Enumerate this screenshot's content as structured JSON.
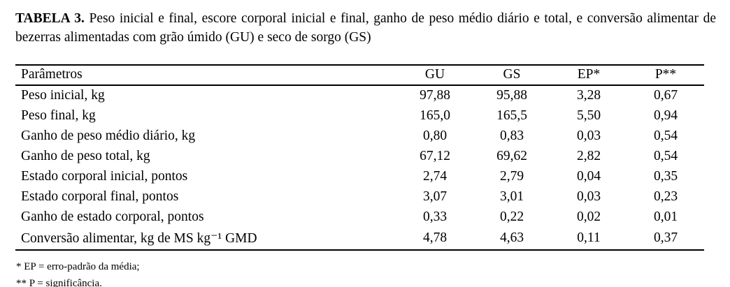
{
  "caption": {
    "label": "TABELA 3.",
    "text": "Peso inicial e final, escore corporal inicial e final, ganho de peso médio diário e total, e conversão alimentar de bezerras alimentadas com grão úmido (GU) e seco de sorgo (GS)"
  },
  "table": {
    "columns": {
      "param": "Parâmetros",
      "gu": "GU",
      "gs": "GS",
      "ep": "EP*",
      "p": "P**"
    },
    "rows": [
      {
        "param": "Peso inicial, kg",
        "gu": "97,88",
        "gs": "95,88",
        "ep": "3,28",
        "p": "0,67"
      },
      {
        "param": "Peso final, kg",
        "gu": "165,0",
        "gs": "165,5",
        "ep": "5,50",
        "p": "0,94"
      },
      {
        "param": "Ganho de peso médio diário, kg",
        "gu": "0,80",
        "gs": "0,83",
        "ep": "0,03",
        "p": "0,54"
      },
      {
        "param": "Ganho de peso total, kg",
        "gu": "67,12",
        "gs": "69,62",
        "ep": "2,82",
        "p": "0,54"
      },
      {
        "param": "Estado corporal inicial, pontos",
        "gu": "2,74",
        "gs": "2,79",
        "ep": "0,04",
        "p": "0,35"
      },
      {
        "param": "Estado corporal final, pontos",
        "gu": "3,07",
        "gs": "3,01",
        "ep": "0,03",
        "p": "0,23"
      },
      {
        "param": "Ganho de estado corporal, pontos",
        "gu": "0,33",
        "gs": "0,22",
        "ep": "0,02",
        "p": "0,01"
      },
      {
        "param": "Conversão alimentar, kg de MS kg⁻¹ GMD",
        "gu": "4,78",
        "gs": "4,63",
        "ep": "0,11",
        "p": "0,37"
      }
    ]
  },
  "footnotes": [
    "* EP = erro-padrão da média;",
    "** P = significância."
  ],
  "colors": {
    "text": "#000000",
    "background": "#ffffff",
    "rule": "#000000"
  }
}
